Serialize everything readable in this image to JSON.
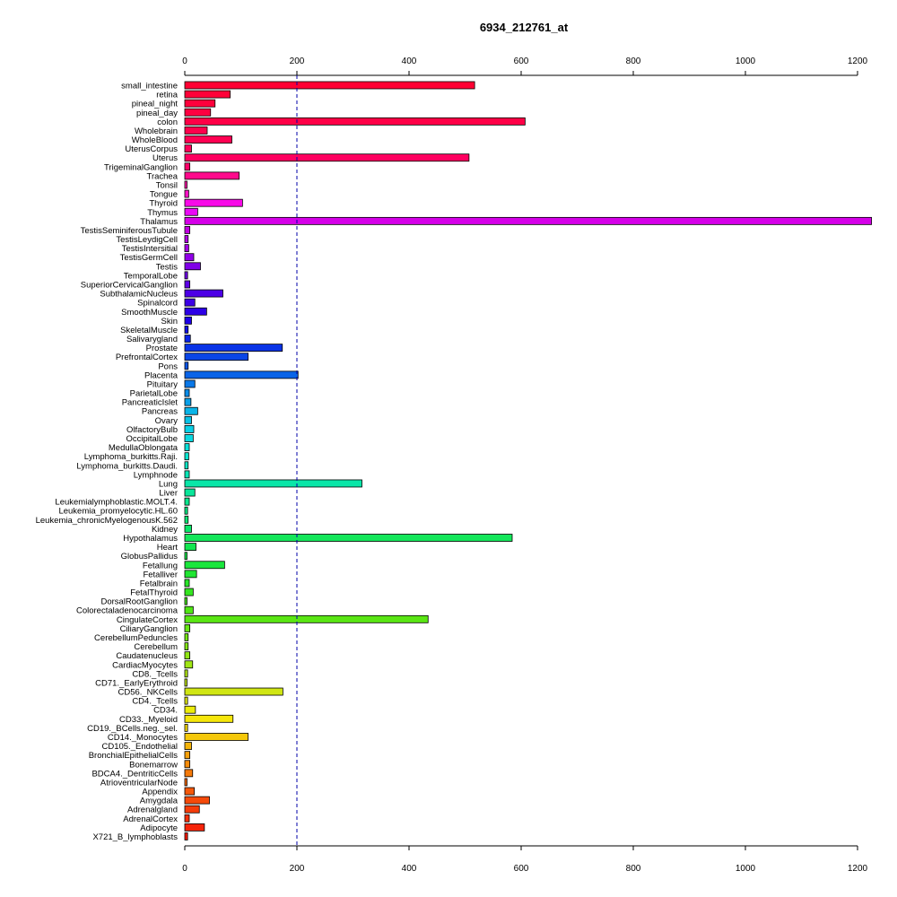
{
  "chart_data": {
    "type": "bar",
    "orientation": "horizontal",
    "title": "6934_212761_at",
    "xlim": [
      0,
      1200
    ],
    "x_ticks": [
      0,
      200,
      400,
      600,
      800,
      1000,
      1200
    ],
    "reference_line": 200,
    "categories": [
      "small_intestine",
      "retina",
      "pineal_night",
      "pineal_day",
      "colon",
      "Wholebrain",
      "WholeBlood",
      "UterusCorpus",
      "Uterus",
      "TrigeminalGanglion",
      "Trachea",
      "Tonsil",
      "Tongue",
      "Thyroid",
      "Thymus",
      "Thalamus",
      "TestisSeminiferousTubule",
      "TestisLeydigCell",
      "TestisIntersitial",
      "TestisGermCell",
      "Testis",
      "TemporalLobe",
      "SuperiorCervicalGanglion",
      "SubthalamicNucleus",
      "Spinalcord",
      "SmoothMuscle",
      "Skin",
      "SkeletalMuscle",
      "Salivarygland",
      "Prostate",
      "PrefrontalCortex",
      "Pons",
      "Placenta",
      "Pituitary",
      "ParietalLobe",
      "PancreaticIslet",
      "Pancreas",
      "Ovary",
      "OlfactoryBulb",
      "OccipitalLobe",
      "MedullaOblongata",
      "Lymphoma_burkitts.Raji.",
      "Lymphoma_burkitts.Daudi.",
      "Lymphnode",
      "Lung",
      "Liver",
      "Leukemialymphoblastic.MOLT.4.",
      "Leukemia_promyelocytic.HL.60",
      "Leukemia_chronicMyelogenousK.562",
      "Kidney",
      "Hypothalamus",
      "Heart",
      "GlobusPallidus",
      "Fetallung",
      "Fetalliver",
      "Fetalbrain",
      "FetalThyroid",
      "DorsalRootGanglion",
      "Colorectaladenocarcinoma",
      "CingulateCortex",
      "CiliaryGanglion",
      "CerebellumPeduncles",
      "Cerebellum",
      "Caudatenucleus",
      "CardiacMyocytes",
      "CD8._Tcells",
      "CD71._EarlyErythroid",
      "CD56._NKCells",
      "CD4._Tcells",
      "CD34.",
      "CD33._Myeloid",
      "CD19._BCells.neg._sel.",
      "CD14._Monocytes",
      "CD105._Endothelial",
      "BronchialEpithelialCells",
      "Bonemarrow",
      "BDCA4._DentriticCells",
      "AtrioventricularNode",
      "Appendix",
      "Amygdala",
      "Adrenalgland",
      "AdrenalCortex",
      "Adipocyte",
      "X721_B_lymphoblasts"
    ],
    "values": [
      517,
      81,
      54,
      46,
      607,
      40,
      84,
      12,
      507,
      9,
      97,
      4,
      7,
      103,
      23,
      1225,
      9,
      6,
      7,
      16,
      28,
      5,
      9,
      68,
      18,
      39,
      12,
      6,
      10,
      174,
      113,
      6,
      202,
      18,
      8,
      11,
      23,
      12,
      16,
      15,
      8,
      7,
      6,
      8,
      316,
      18,
      8,
      5,
      6,
      12,
      584,
      20,
      4,
      71,
      21,
      8,
      15,
      4,
      15,
      434,
      9,
      6,
      6,
      9,
      14,
      5,
      4,
      175,
      5,
      19,
      86,
      5,
      113,
      12,
      9,
      9,
      14,
      4,
      17,
      44,
      26,
      8,
      35,
      5
    ],
    "colors": [
      "#ff0033",
      "#ff0038",
      "#ff003c",
      "#ff0041",
      "#ff0046",
      "#ff004c",
      "#ff0052",
      "#ff0059",
      "#ff0060",
      "#ff0069",
      "#ff0a8c",
      "#ff14a8",
      "#ff12c8",
      "#f80ae8",
      "#ea0af5",
      "#d500e8",
      "#c000e0",
      "#b300e6",
      "#a300e6",
      "#9100e8",
      "#8000e8",
      "#7000e8",
      "#5e00e6",
      "#4c00e6",
      "#3c00e6",
      "#2d00e6",
      "#1e00e6",
      "#1212e6",
      "#0a24e6",
      "#0a34e6",
      "#0a46e6",
      "#0a55e6",
      "#0a64e8",
      "#0a78e8",
      "#0a8ce8",
      "#0aa0e8",
      "#0ab4e8",
      "#0ac2e6",
      "#0ad0e6",
      "#0ad8e0",
      "#0ae0d8",
      "#0ae6d0",
      "#0ae6c4",
      "#0ae6b6",
      "#0ae6a8",
      "#0ae69a",
      "#0ae68c",
      "#0ae680",
      "#0ae674",
      "#0ae668",
      "#14e65a",
      "#14e650",
      "#14e646",
      "#1ae63c",
      "#20e632",
      "#28e628",
      "#34e620",
      "#42e61a",
      "#50e614",
      "#5ae614",
      "#66e614",
      "#74e614",
      "#82e614",
      "#90e614",
      "#a0e614",
      "#b0e614",
      "#c0e614",
      "#d0e614",
      "#e0e614",
      "#ecec0a",
      "#f5e60a",
      "#f5d80a",
      "#f5c80a",
      "#f5b40a",
      "#f5a00a",
      "#f58c0a",
      "#f57a0a",
      "#f5680a",
      "#f5580a",
      "#f54a0a",
      "#f53c0a",
      "#f5300a",
      "#f5240a",
      "#f51a0a"
    ]
  }
}
